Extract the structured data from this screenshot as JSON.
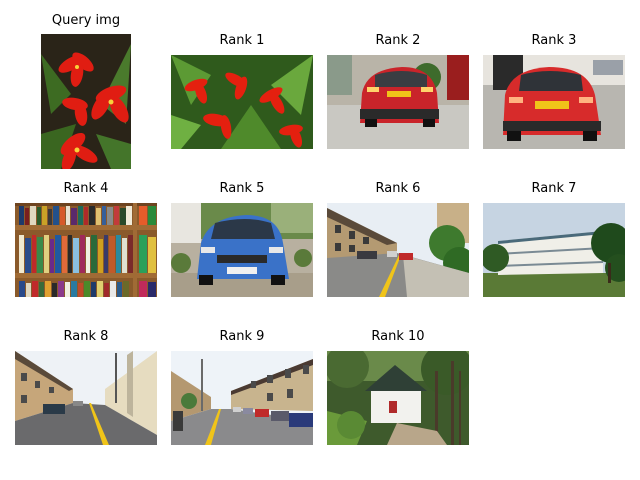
{
  "figure": {
    "query": {
      "title": "Query img",
      "content": "red lily flowers with green leaves on dark soil"
    },
    "results": [
      {
        "title": "Rank 1",
        "content": "red lily flowers with green leaves"
      },
      {
        "title": "Rank 2",
        "content": "red hatchback car, rear view, parked in front of house"
      },
      {
        "title": "Rank 3",
        "content": "red hatchback car, rear view, parked on pavement"
      },
      {
        "title": "Rank 4",
        "content": "wooden bookshelf full of books"
      },
      {
        "title": "Rank 5",
        "content": "blue compact car parked on gravel"
      },
      {
        "title": "Rank 6",
        "content": "residential street with terraced houses and parked cars"
      },
      {
        "title": "Rank 7",
        "content": "long white apartment building with lawn and trees"
      },
      {
        "title": "Rank 8",
        "content": "narrow street with terraced houses"
      },
      {
        "title": "Rank 9",
        "content": "street with parked cars and terraced houses"
      },
      {
        "title": "Rank 10",
        "content": "small white cottage with dark roof among trees"
      }
    ]
  }
}
